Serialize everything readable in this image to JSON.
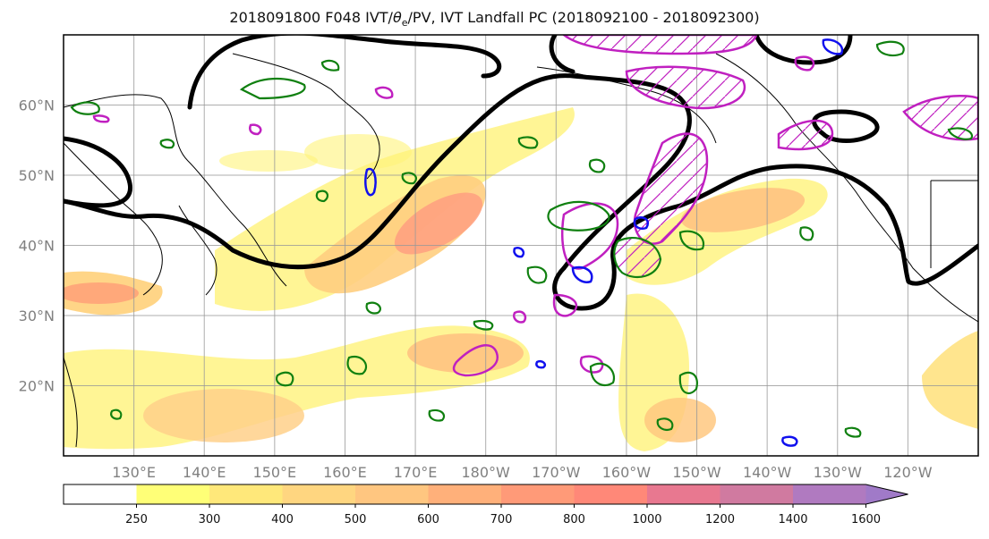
{
  "title": {
    "prefix": "2018091800 F048 IVT/",
    "theta": "θ",
    "theta_sub": "e",
    "suffix": "/PV, IVT Landfall PC (2018092100 - 2018092300)"
  },
  "map": {
    "lat_labels": [
      {
        "lat": 60,
        "text": "60°N"
      },
      {
        "lat": 50,
        "text": "50°N"
      },
      {
        "lat": 40,
        "text": "40°N"
      },
      {
        "lat": 30,
        "text": "30°N"
      },
      {
        "lat": 20,
        "text": "20°N"
      }
    ],
    "lon_labels": [
      {
        "lon": 130,
        "text": "130°E"
      },
      {
        "lon": 140,
        "text": "140°E"
      },
      {
        "lon": 150,
        "text": "150°E"
      },
      {
        "lon": 160,
        "text": "160°E"
      },
      {
        "lon": 170,
        "text": "170°E"
      },
      {
        "lon": 180,
        "text": "180°W"
      },
      {
        "lon": 190,
        "text": "170°W"
      },
      {
        "lon": 200,
        "text": "160°W"
      },
      {
        "lon": 210,
        "text": "150°W"
      },
      {
        "lon": 220,
        "text": "140°W"
      },
      {
        "lon": 230,
        "text": "130°W"
      },
      {
        "lon": 240,
        "text": "120°W"
      }
    ],
    "lat_range": [
      10,
      70
    ],
    "lon_range": [
      120,
      250
    ],
    "grid": true
  },
  "colorbar": {
    "levels": [
      "250",
      "300",
      "400",
      "500",
      "600",
      "700",
      "800",
      "1000",
      "1200",
      "1400",
      "1600"
    ],
    "colors": [
      "#ffffff",
      "#ffff77",
      "#ffe87a",
      "#ffd680",
      "#ffc680",
      "#ffb07a",
      "#ff9a78",
      "#ff8878",
      "#e87890",
      "#d07aa0",
      "#b07ac0",
      "#a07ac8"
    ],
    "extend": "max"
  },
  "colors": {
    "thetae": "#000000",
    "pv_magenta": "#c020c0",
    "pv_blue": "#1010ee",
    "green": "#108010"
  }
}
